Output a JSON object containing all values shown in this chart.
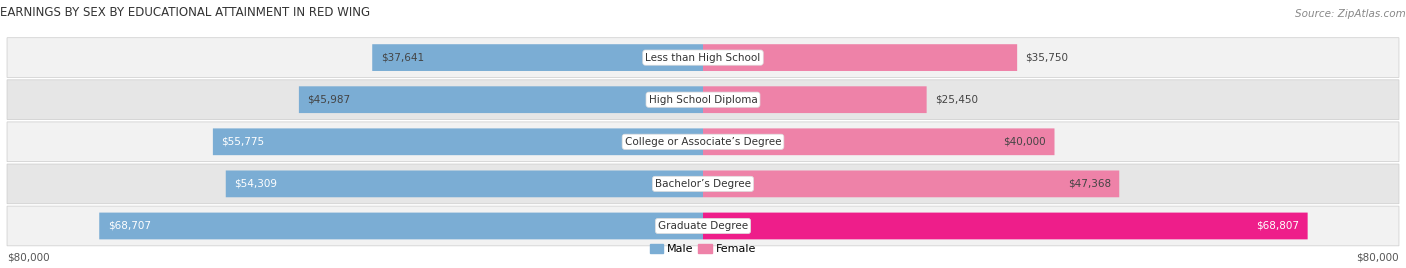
{
  "title": "EARNINGS BY SEX BY EDUCATIONAL ATTAINMENT IN RED WING",
  "source": "Source: ZipAtlas.com",
  "categories": [
    "Less than High School",
    "High School Diploma",
    "College or Associate’s Degree",
    "Bachelor’s Degree",
    "Graduate Degree"
  ],
  "male_values": [
    37641,
    45987,
    55775,
    54309,
    68707
  ],
  "female_values": [
    35750,
    25450,
    40000,
    47368,
    68807
  ],
  "max_value": 80000,
  "male_color": "#7BADD4",
  "female_color": "#EE82A8",
  "female_color_bright": "#EE1E8A",
  "row_bg_color_light": "#F2F2F2",
  "row_bg_color_dark": "#E6E6E6",
  "label_bg_color": "#FFFFFF",
  "fig_bg_color": "#FFFFFF",
  "title_fontsize": 8.5,
  "source_fontsize": 7.5,
  "bar_label_fontsize": 7.5,
  "cat_label_fontsize": 7.5,
  "axis_label_fontsize": 7.5,
  "legend_fontsize": 8,
  "x_axis_label_left": "$80,000",
  "x_axis_label_right": "$80,000"
}
